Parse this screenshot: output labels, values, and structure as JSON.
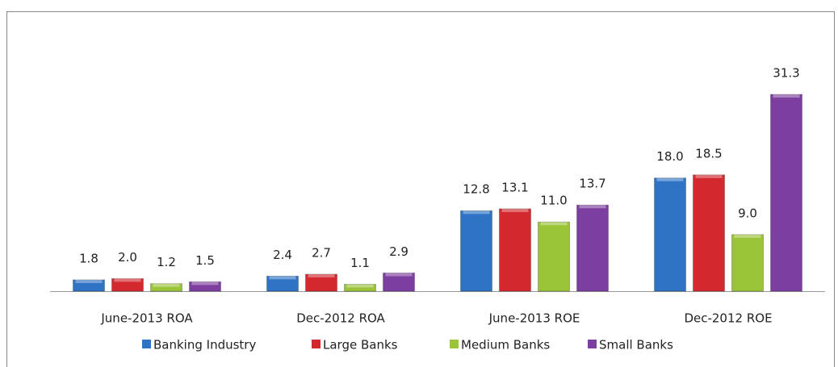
{
  "chart_data": {
    "type": "bar",
    "categories": [
      "June-2013 ROA",
      "Dec-2012 ROA",
      "June-2013 ROE",
      "Dec-2012 ROE"
    ],
    "series": [
      {
        "name": "Banking Industry",
        "color": "#2f74c4",
        "values": [
          1.8,
          2.4,
          12.8,
          18.0
        ],
        "value_labels": [
          "1.8",
          "2.4",
          "12.8",
          "18.0"
        ]
      },
      {
        "name": "Large Banks",
        "color": "#d2282e",
        "values": [
          2.0,
          2.7,
          13.1,
          18.5
        ],
        "value_labels": [
          "2.0",
          "2.7",
          "13.1",
          "18.5"
        ]
      },
      {
        "name": "Medium Banks",
        "color": "#9cc438",
        "values": [
          1.2,
          1.1,
          11.0,
          9.0
        ],
        "value_labels": [
          "1.2",
          "1.1",
          "11.0",
          "9.0"
        ]
      },
      {
        "name": "Small Banks",
        "color": "#7d3f9f",
        "values": [
          1.5,
          2.9,
          13.7,
          31.3
        ],
        "value_labels": [
          "1.5",
          "2.9",
          "13.7",
          "31.3"
        ]
      }
    ],
    "legend": "bottom"
  }
}
